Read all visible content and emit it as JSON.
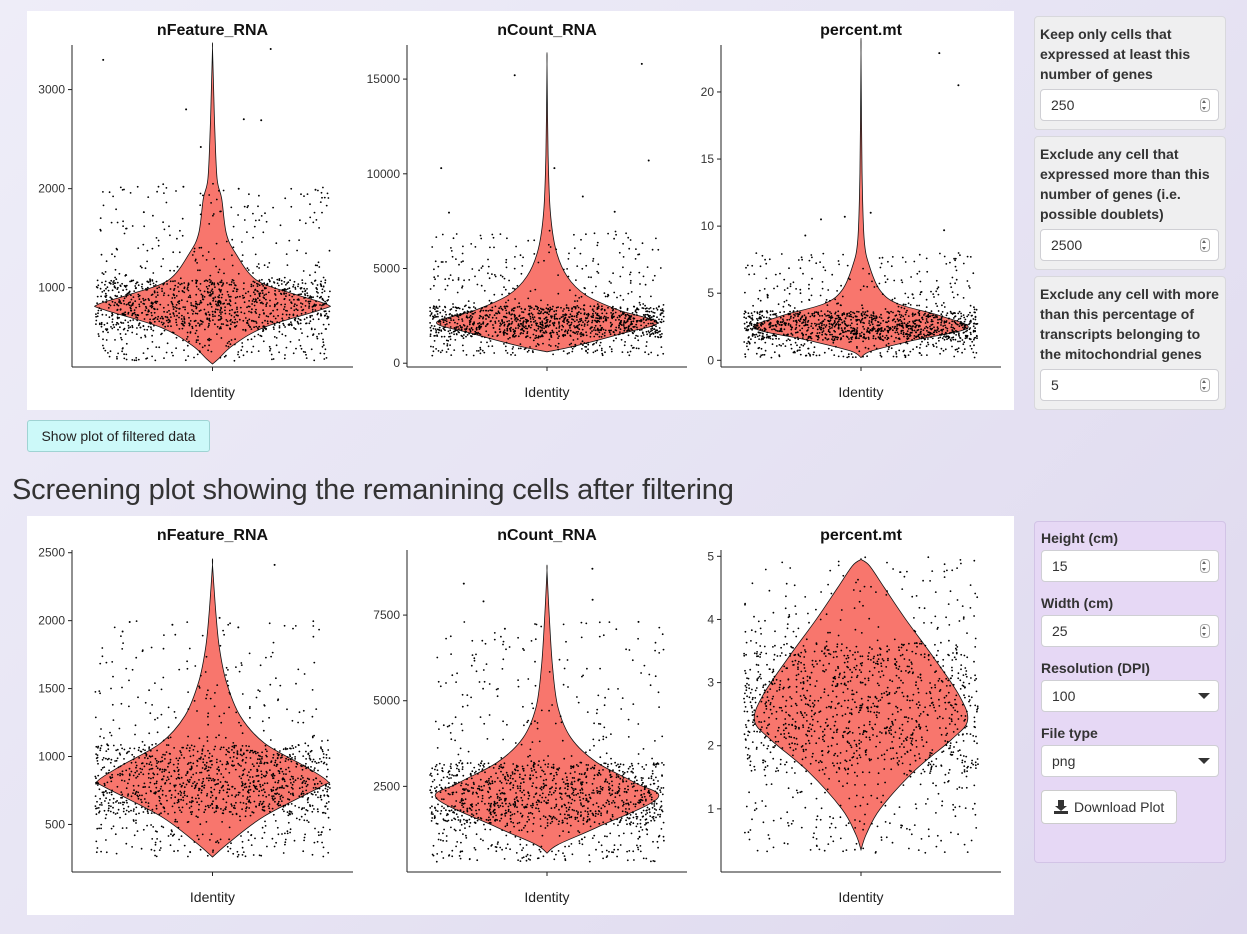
{
  "top_section": {
    "chart_data": [
      {
        "type": "violin",
        "title": "nFeature_RNA",
        "xlabel": "Identity",
        "ylim": [
          200,
          3450
        ],
        "yticks": [
          1000,
          2000,
          3000
        ],
        "median": 830,
        "width_at_median": 0.88
      },
      {
        "type": "violin",
        "title": "nCount_RNA",
        "xlabel": "Identity",
        "ylim": [
          -200,
          16800
        ],
        "yticks": [
          0,
          5000,
          10000,
          15000
        ],
        "median": 2150,
        "width_at_median": 0.85
      },
      {
        "type": "violin",
        "title": "percent.mt",
        "xlabel": "Identity",
        "ylim": [
          -0.5,
          23.5
        ],
        "yticks": [
          0,
          5,
          10,
          15,
          20
        ],
        "median": 2.4,
        "width_at_median": 0.82
      }
    ]
  },
  "filters": [
    {
      "label": "Keep only cells that expressed at least this number of genes",
      "value": "250"
    },
    {
      "label": "Exclude any cell that expressed more than this number of genes (i.e. possible doublets)",
      "value": "2500"
    },
    {
      "label": "Exclude any cell with more than this percentage of transcripts belonging to the mitochondrial genes",
      "value": "5"
    }
  ],
  "show_filtered_button": "Show plot of filtered data",
  "filtered_heading": "Screening plot showing the remanining cells after filtering",
  "bottom_section": {
    "chart_data": [
      {
        "type": "violin",
        "title": "nFeature_RNA",
        "xlabel": "Identity",
        "ylim": [
          150,
          2520
        ],
        "yticks": [
          500,
          1000,
          1500,
          2000,
          2500
        ],
        "median": 820,
        "width_at_median": 0.88
      },
      {
        "type": "violin",
        "title": "nCount_RNA",
        "xlabel": "Identity",
        "ylim": [
          0,
          9400
        ],
        "yticks": [
          2500,
          5000,
          7500
        ],
        "median": 2150,
        "width_at_median": 0.85
      },
      {
        "type": "violin",
        "title": "percent.mt",
        "xlabel": "Identity",
        "ylim": [
          0,
          5.1
        ],
        "yticks": [
          1,
          2,
          3,
          4,
          5
        ],
        "median": 2.4,
        "width_at_median": 0.82
      }
    ]
  },
  "download": {
    "height_label": "Height (cm)",
    "height_value": "15",
    "width_label": "Width (cm)",
    "width_value": "25",
    "dpi_label": "Resolution (DPI)",
    "dpi_value": "100",
    "filetype_label": "File type",
    "filetype_value": "png",
    "button_label": "Download Plot"
  },
  "colors": {
    "violin_fill": "#f8766d",
    "points": "#000000",
    "show_button_bg": "#ccf9f9",
    "download_panel_bg": "#e6d8f5"
  }
}
